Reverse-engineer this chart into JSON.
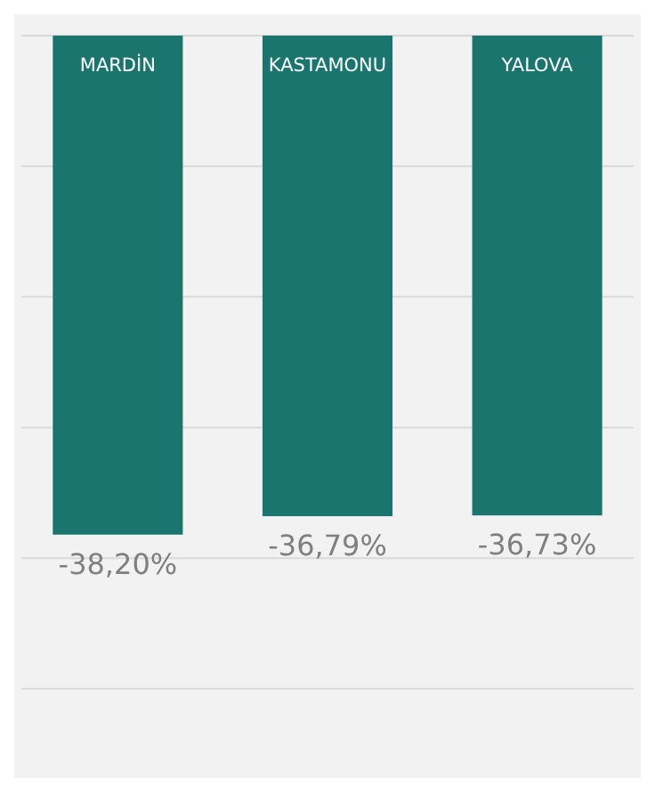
{
  "chart_data": {
    "type": "bar",
    "categories": [
      "MARDİN",
      "KASTAMONU",
      "YALOVA"
    ],
    "values": [
      -38.2,
      -36.79,
      -36.73
    ],
    "value_labels": [
      "-38,20%",
      "-36,79%",
      "-36,73%"
    ],
    "color": "#1b756f",
    "ylim": [
      -50,
      0
    ],
    "yticks": [
      {
        "value": 0,
        "label": null
      },
      {
        "value": -10,
        "label": null
      },
      {
        "value": -20,
        "label": null
      },
      {
        "value": -30,
        "label": null
      },
      {
        "value": -40,
        "label": null
      },
      {
        "value": -50,
        "label": null
      }
    ],
    "grid": "y",
    "tick_labels": "x"
  }
}
